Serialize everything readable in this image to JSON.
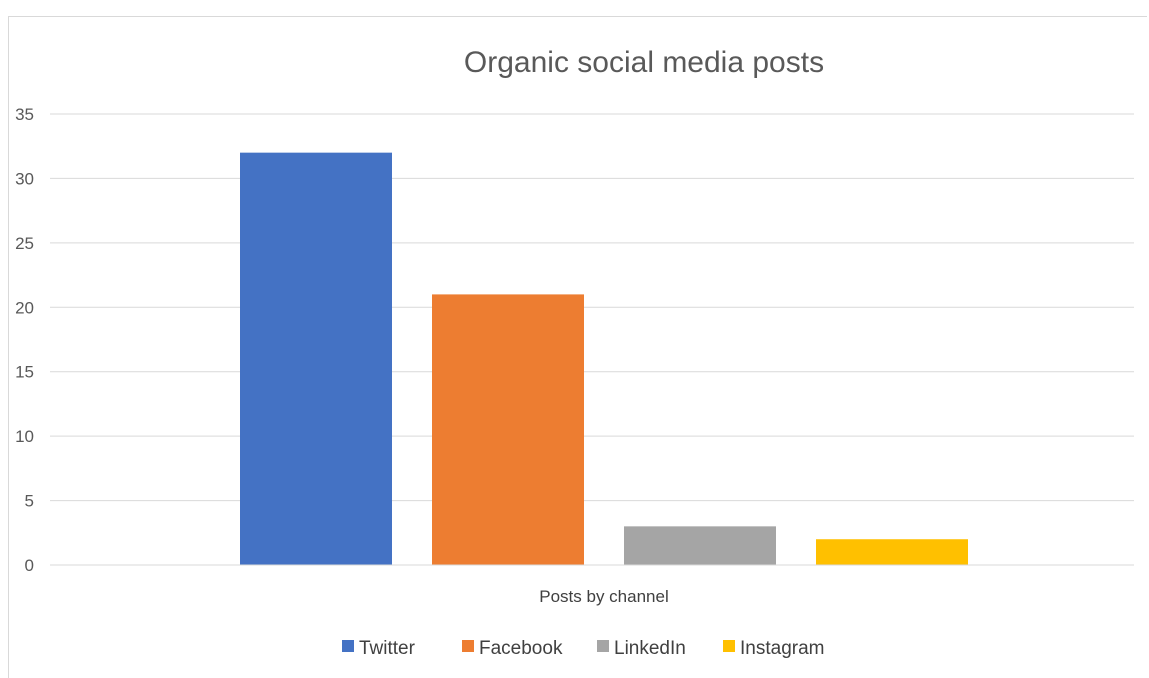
{
  "chart_data": {
    "type": "bar",
    "title": "Organic social media posts",
    "xlabel": "Posts by channel",
    "ylabel": "",
    "ylim": [
      0,
      35
    ],
    "yticks": [
      0,
      5,
      10,
      15,
      20,
      25,
      30,
      35
    ],
    "grid": true,
    "legend_position": "bottom",
    "categories": [
      "Posts by channel"
    ],
    "series": [
      {
        "name": "Twitter",
        "values": [
          32
        ],
        "color": "#4472C4"
      },
      {
        "name": "Facebook",
        "values": [
          21
        ],
        "color": "#ED7D31"
      },
      {
        "name": "LinkedIn",
        "values": [
          3
        ],
        "color": "#A5A5A5"
      },
      {
        "name": "Instagram",
        "values": [
          2
        ],
        "color": "#FFC000"
      }
    ]
  }
}
